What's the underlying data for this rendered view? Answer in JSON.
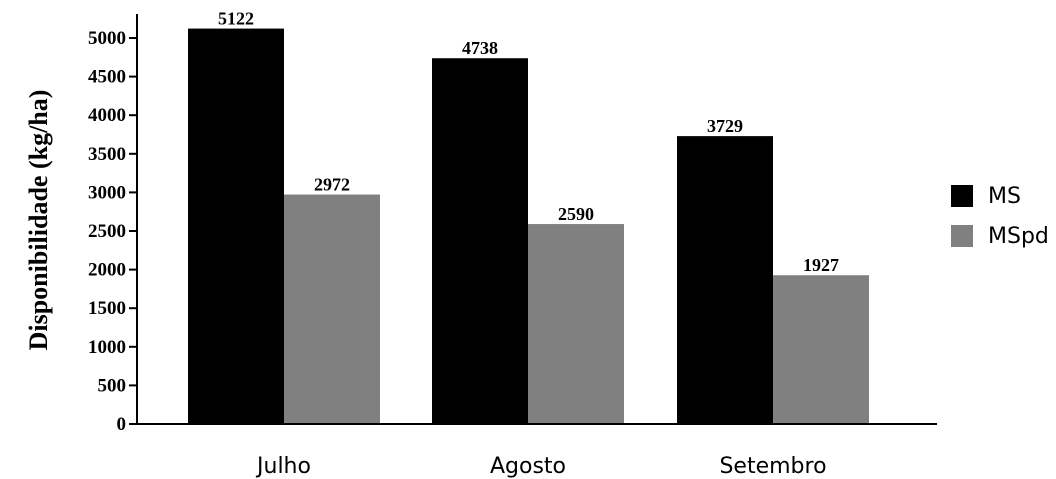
{
  "chart_data": {
    "type": "bar",
    "ylabel": "Disponibilidade (kg/ha)",
    "xlabel": "",
    "categories": [
      "Julho",
      "Agosto",
      "Setembro"
    ],
    "series": [
      {
        "name": "MS",
        "color": "#000000",
        "values": [
          5122,
          4738,
          3729
        ]
      },
      {
        "name": "MSpd",
        "color": "#808080",
        "values": [
          2972,
          2590,
          1927
        ]
      }
    ],
    "ylim": [
      0,
      5000
    ],
    "yticks": [
      0,
      500,
      1000,
      1500,
      2000,
      2500,
      3000,
      3500,
      4000,
      4500,
      5000
    ],
    "data_labels": true,
    "grid": false,
    "legend_position": "right"
  }
}
